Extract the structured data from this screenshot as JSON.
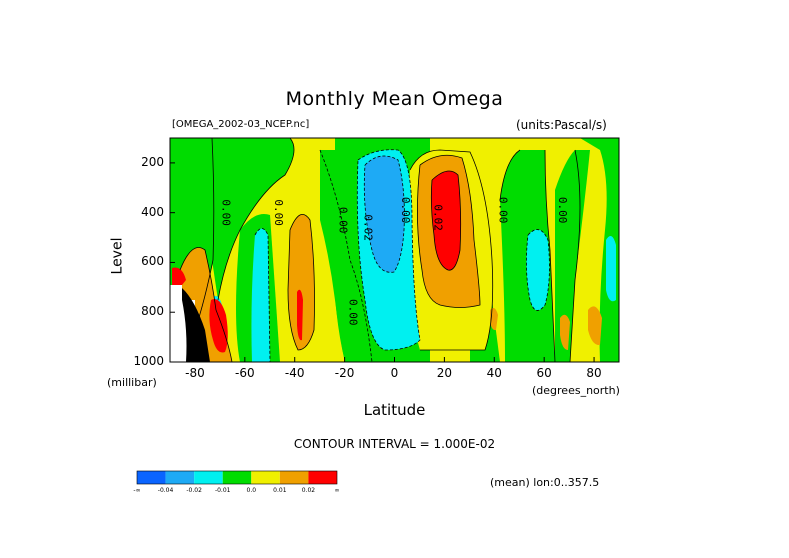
{
  "title": "Monthly Mean Omega",
  "file_label": "[OMEGA_2002-03_NCEP.nc]",
  "units_label": "(units:Pascal/s)",
  "y_axis": {
    "label": "Level",
    "unit": "(millibar)",
    "ticks": [
      "200",
      "400",
      "600",
      "800",
      "1000"
    ]
  },
  "x_axis": {
    "label": "Latitude",
    "unit": "(degrees_north)",
    "ticks": [
      "-80",
      "-60",
      "-40",
      "-20",
      "0",
      "20",
      "40",
      "60",
      "80"
    ]
  },
  "contour_interval": "CONTOUR INTERVAL = 1.000E-02",
  "mean_label": "(mean) lon:0..357.5",
  "contour_labels": [
    "0.00",
    "0.00",
    "0.00",
    "0.02",
    "0.00",
    "0.02",
    "0.00",
    "0.00",
    "0.00"
  ],
  "colorbar": {
    "labels": [
      "-∞",
      "-0.04",
      "-0.02",
      "-0.01",
      "0.0",
      "0.01",
      "0.02",
      "∞"
    ],
    "colors": [
      "#0a64ff",
      "#1eaaf5",
      "#00f0f0",
      "#00dc00",
      "#f0f000",
      "#f0a000",
      "#ff0000"
    ]
  },
  "chart_data": {
    "type": "heatmap",
    "title": "Monthly Mean Omega",
    "xlabel": "Latitude",
    "ylabel": "Level",
    "xlim": [
      -90,
      90
    ],
    "ylim": [
      1000,
      100
    ],
    "y_reversed": true,
    "contour_interval": 0.01,
    "levels": [
      "-∞",
      -0.04,
      -0.02,
      -0.01,
      0.0,
      0.01,
      0.02,
      "∞"
    ],
    "features": [
      {
        "lat": -72,
        "level": 830,
        "category": ">0.02"
      },
      {
        "lat": -42,
        "level": 830,
        "category": ">0.02"
      },
      {
        "lat": -58,
        "level": 650,
        "category": "-0.02..-0.01"
      },
      {
        "lat": -40,
        "level": 550,
        "category": "0.01..0.02"
      },
      {
        "lat": -10,
        "level": 400,
        "category": "-0.04..-0.02"
      },
      {
        "lat": -5,
        "level": 700,
        "category": "-0.02..-0.01"
      },
      {
        "lat": 22,
        "level": 430,
        "category": ">0.02"
      },
      {
        "lat": 23,
        "level": 600,
        "category": "0.01..0.02"
      },
      {
        "lat": 57,
        "level": 650,
        "category": "-0.02..-0.01"
      }
    ]
  }
}
